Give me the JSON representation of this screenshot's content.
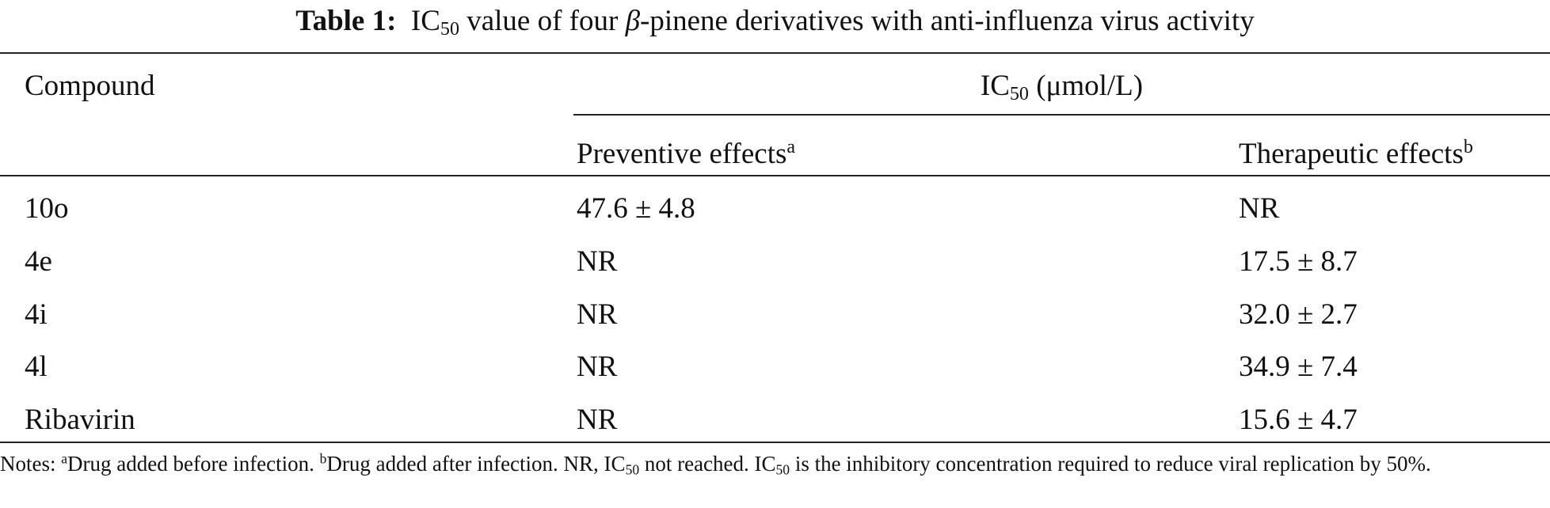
{
  "title": [
    "Table 1:",
    "IC",
    "50",
    " value of four ",
    "β",
    "-pinene derivatives with anti-influenza virus activity"
  ],
  "table": {
    "header": {
      "compound": "Compound",
      "group": [
        "IC",
        "50",
        " (μmol/L)"
      ],
      "columns": [
        [
          "Preventive effects",
          "a"
        ],
        [
          "Therapeutic effects",
          "b"
        ]
      ]
    },
    "rows": [
      [
        "10o",
        "47.6 ± 4.8",
        "NR"
      ],
      [
        "4e",
        "NR",
        "17.5 ± 8.7"
      ],
      [
        "4i",
        "NR",
        "32.0 ± 2.7"
      ],
      [
        "4l",
        "NR",
        "34.9 ± 7.4"
      ],
      [
        "Ribavirin",
        "NR",
        "15.6 ± 4.7"
      ]
    ]
  },
  "notes": [
    "Notes: ",
    "a",
    "Drug added before infection. ",
    "b",
    "Drug added after infection. NR, IC",
    "50",
    " not reached. IC",
    "50",
    " is the inhibitory concentration required to reduce viral replication by 50%."
  ]
}
